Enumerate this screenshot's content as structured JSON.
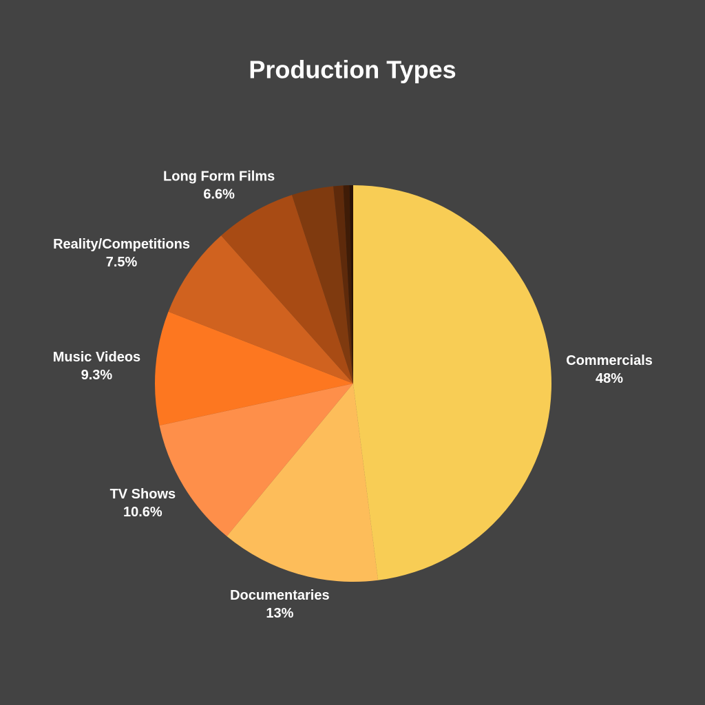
{
  "chart_data": {
    "type": "pie",
    "title": "Production Types",
    "categories": [
      "Commercials",
      "Documentaries",
      "TV Shows",
      "Music Videos",
      "Reality/Competitions",
      "Long Form Films",
      null,
      null,
      null,
      null
    ],
    "values": [
      48,
      13,
      10.6,
      9.3,
      7.5,
      6.6,
      3.4,
      0.8,
      0.5,
      0.3
    ],
    "value_labels": [
      "48%",
      "13%",
      "10.6%",
      "9.3%",
      "7.5%",
      "6.6%",
      null,
      null,
      null,
      null
    ],
    "colors": [
      "#f8cd55",
      "#fdbd5a",
      "#fe8f4a",
      "#fd7720",
      "#d0621f",
      "#a84b14",
      "#7f3a0f",
      "#5e2a0b",
      "#3f1c07",
      "#2a1205"
    ]
  }
}
